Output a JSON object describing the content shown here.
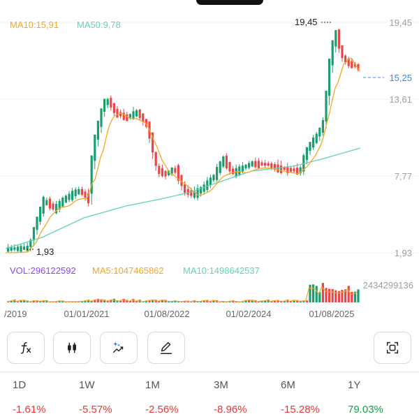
{
  "legend": {
    "ma10": "MA10:15,91",
    "ma50": "MA50:9,78",
    "vol": "VOL:296122592",
    "vol_ma5": "MA5:1047465862",
    "vol_ma10": "MA10:1498642537"
  },
  "price_axis": [
    "19,45",
    "13,61",
    "7,77",
    "1,93"
  ],
  "price_marks": {
    "high": "19,45",
    "low": "1,93",
    "current": "15,25"
  },
  "volume_axis_max": "2434299136",
  "date_axis": [
    "/2019",
    "01/01/2021",
    "01/08/2022",
    "01/02/2024",
    "01/08/2025"
  ],
  "colors": {
    "up": "#1a9e6e",
    "down": "#e8474a",
    "ma10": "#f5a623",
    "ma50": "#5fd3b5",
    "vol": "#8e44ff",
    "current": "#3a86ff"
  },
  "toolbar": [
    {
      "name": "indicator-fx-button",
      "icon": "function-fx-icon"
    },
    {
      "name": "candlestick-type-button",
      "icon": "candlestick-icon"
    },
    {
      "name": "ai-trend-button",
      "icon": "sparkle-trend-icon"
    },
    {
      "name": "draw-button",
      "icon": "pencil-icon"
    },
    {
      "name": "fullscreen-button",
      "icon": "screenshot-frame-icon"
    }
  ],
  "periods": [
    {
      "label": "1D",
      "value": "-1.61%",
      "dir": "neg"
    },
    {
      "label": "1W",
      "value": "-5.57%",
      "dir": "neg"
    },
    {
      "label": "1M",
      "value": "-2.56%",
      "dir": "neg"
    },
    {
      "label": "3M",
      "value": "-8.96%",
      "dir": "neg"
    },
    {
      "label": "6M",
      "value": "-15.28%",
      "dir": "neg"
    },
    {
      "label": "1Y",
      "value": "79.03%",
      "dir": "pos"
    }
  ]
}
